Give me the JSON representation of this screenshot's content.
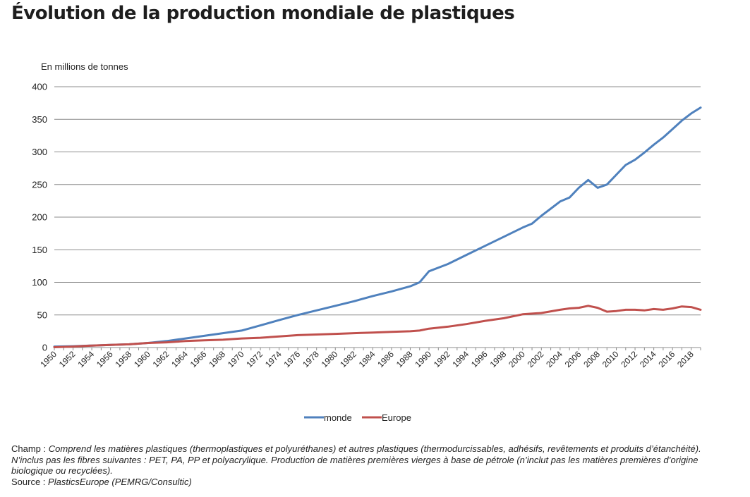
{
  "title": "Évolution de la production mondiale de plastiques",
  "notes": {
    "champ_label": "Champ :",
    "champ_text": "Comprend les matières plastiques (thermoplastiques et polyuréthanes) et autres plastiques (thermodurcissables, adhésifs, revêtements et produits d’étanchéité). N’inclus pas les fibres suivantes : PET, PA, PP et polyacrylique. Production de matières premières vierges à base de pétrole (n’inclut pas les matières premières d’origine biologique ou recyclées).",
    "source_label": "Source :",
    "source_text": "PlasticsEurope (PEMRG/Consultic)"
  },
  "chart_data": {
    "type": "line",
    "ylabel": "En millions de tonnes",
    "ylim": [
      0,
      400
    ],
    "yticks": [
      0,
      50,
      100,
      150,
      200,
      250,
      300,
      350,
      400
    ],
    "xlim": [
      1950,
      2019
    ],
    "xticks": [
      1950,
      1952,
      1954,
      1956,
      1958,
      1960,
      1962,
      1964,
      1966,
      1968,
      1970,
      1972,
      1974,
      1976,
      1978,
      1980,
      1982,
      1984,
      1986,
      1988,
      1990,
      1992,
      1994,
      1996,
      1998,
      2000,
      2002,
      2004,
      2006,
      2008,
      2010,
      2012,
      2014,
      2016,
      2018
    ],
    "grid": true,
    "legend_position": "bottom-center",
    "series": [
      {
        "name": "monde",
        "color": "#4f81bd",
        "points": [
          [
            1950,
            1.5
          ],
          [
            1952,
            2
          ],
          [
            1954,
            3
          ],
          [
            1956,
            4
          ],
          [
            1958,
            5
          ],
          [
            1960,
            7
          ],
          [
            1962,
            10
          ],
          [
            1964,
            14
          ],
          [
            1966,
            18
          ],
          [
            1968,
            22
          ],
          [
            1970,
            26
          ],
          [
            1972,
            34
          ],
          [
            1974,
            42
          ],
          [
            1976,
            50
          ],
          [
            1978,
            57
          ],
          [
            1980,
            64
          ],
          [
            1982,
            71
          ],
          [
            1984,
            79
          ],
          [
            1986,
            86
          ],
          [
            1988,
            94
          ],
          [
            1989,
            100
          ],
          [
            1990,
            117
          ],
          [
            1992,
            128
          ],
          [
            1994,
            142
          ],
          [
            1996,
            156
          ],
          [
            1998,
            170
          ],
          [
            2000,
            184
          ],
          [
            2001,
            190
          ],
          [
            2002,
            202
          ],
          [
            2003,
            213
          ],
          [
            2004,
            224
          ],
          [
            2005,
            230
          ],
          [
            2006,
            245
          ],
          [
            2007,
            257
          ],
          [
            2008,
            245
          ],
          [
            2009,
            250
          ],
          [
            2010,
            265
          ],
          [
            2011,
            280
          ],
          [
            2012,
            288
          ],
          [
            2013,
            299
          ],
          [
            2014,
            311
          ],
          [
            2015,
            322
          ],
          [
            2016,
            335
          ],
          [
            2017,
            348
          ],
          [
            2018,
            359
          ],
          [
            2019,
            368
          ]
        ]
      },
      {
        "name": "Europe",
        "color": "#c0504d",
        "points": [
          [
            1950,
            0.5
          ],
          [
            1952,
            1.5
          ],
          [
            1954,
            3
          ],
          [
            1956,
            4
          ],
          [
            1958,
            5
          ],
          [
            1960,
            7
          ],
          [
            1962,
            8
          ],
          [
            1964,
            10
          ],
          [
            1966,
            11
          ],
          [
            1968,
            12
          ],
          [
            1970,
            14
          ],
          [
            1972,
            15
          ],
          [
            1974,
            17
          ],
          [
            1976,
            19
          ],
          [
            1978,
            20
          ],
          [
            1980,
            21
          ],
          [
            1982,
            22
          ],
          [
            1984,
            23
          ],
          [
            1986,
            24
          ],
          [
            1988,
            25
          ],
          [
            1989,
            26
          ],
          [
            1990,
            29
          ],
          [
            1992,
            32
          ],
          [
            1994,
            36
          ],
          [
            1996,
            41
          ],
          [
            1998,
            45
          ],
          [
            2000,
            51
          ],
          [
            2002,
            53
          ],
          [
            2004,
            58
          ],
          [
            2005,
            60
          ],
          [
            2006,
            61
          ],
          [
            2007,
            64
          ],
          [
            2008,
            61
          ],
          [
            2009,
            55
          ],
          [
            2010,
            56
          ],
          [
            2011,
            58
          ],
          [
            2012,
            58
          ],
          [
            2013,
            57
          ],
          [
            2014,
            59
          ],
          [
            2015,
            58
          ],
          [
            2016,
            60
          ],
          [
            2017,
            63
          ],
          [
            2018,
            62
          ],
          [
            2019,
            58
          ]
        ]
      }
    ]
  }
}
